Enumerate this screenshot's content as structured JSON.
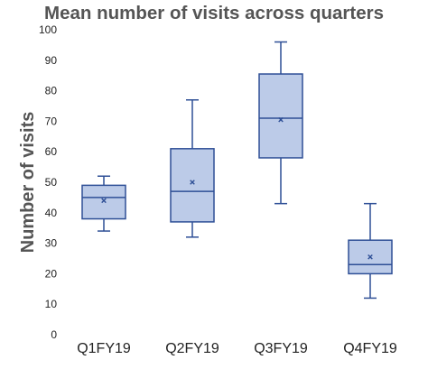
{
  "chart_data": {
    "type": "box",
    "title": "Mean number of visits across quarters",
    "xlabel": "",
    "ylabel": "Number of visits",
    "ylim": [
      0,
      100
    ],
    "yticks": [
      0,
      10,
      20,
      30,
      40,
      50,
      60,
      70,
      80,
      90,
      100
    ],
    "grid": false,
    "categories": [
      "Q1FY19",
      "Q2FY19",
      "Q3FY19",
      "Q4FY19"
    ],
    "boxes": [
      {
        "min": 34,
        "q1": 38,
        "median": 45,
        "q3": 49,
        "max": 52,
        "mean": 44
      },
      {
        "min": 32,
        "q1": 37,
        "median": 47,
        "q3": 61,
        "max": 77,
        "mean": 50
      },
      {
        "min": 43,
        "q1": 58,
        "median": 71,
        "q3": 85.5,
        "max": 96,
        "mean": 70.5
      },
      {
        "min": 12,
        "q1": 20,
        "median": 23,
        "q3": 31,
        "max": 43,
        "mean": 25.5
      }
    ],
    "colors": {
      "box_fill": "#bccbe8",
      "box_stroke": "#2e4f96",
      "mean_marker": "#2e4f96"
    }
  }
}
